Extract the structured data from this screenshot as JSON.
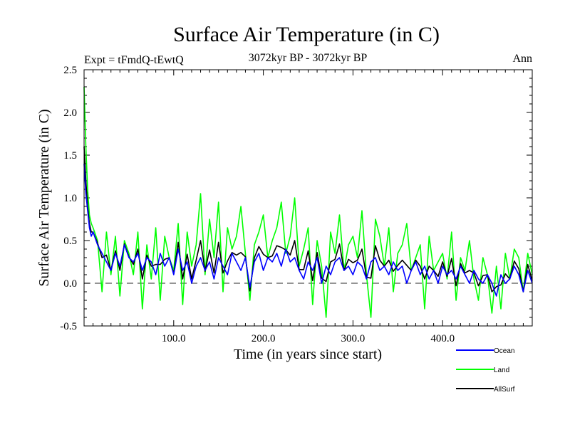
{
  "chart_data": {
    "type": "line",
    "title": "Surface Air Temperature (in C)",
    "subtitle": "3072kyr BP - 3072kyr BP",
    "experiment_label": "Expt = tFmdQ-tEwtQ",
    "season_label": "Ann",
    "xlabel": "Time (in years since start)",
    "ylabel": "Surface Air Temperature (in C)",
    "xlim": [
      0,
      500
    ],
    "ylim": [
      -0.5,
      2.5
    ],
    "xticks": [
      100,
      200,
      300,
      400
    ],
    "xtick_labels": [
      "100.0",
      "200.0",
      "300.0",
      "400.0"
    ],
    "yticks": [
      -0.5,
      0.0,
      0.5,
      1.0,
      1.5,
      2.0,
      2.5
    ],
    "ytick_labels": [
      "-0.5",
      "0.0",
      "0.5",
      "1.0",
      "1.5",
      "2.0",
      "2.5"
    ],
    "reference_line": 0.0,
    "grid": false,
    "legend_position": "bottom-right, below plot",
    "series": [
      {
        "name": "Ocean",
        "color": "#0000ff",
        "x": [
          0,
          2,
          4,
          6,
          8,
          10,
          15,
          20,
          25,
          30,
          35,
          40,
          45,
          50,
          55,
          60,
          65,
          70,
          75,
          80,
          85,
          90,
          95,
          100,
          105,
          110,
          115,
          120,
          125,
          130,
          135,
          140,
          145,
          150,
          155,
          160,
          165,
          170,
          175,
          180,
          185,
          190,
          195,
          200,
          205,
          210,
          215,
          220,
          225,
          230,
          235,
          240,
          245,
          250,
          255,
          260,
          265,
          270,
          275,
          280,
          285,
          290,
          295,
          300,
          305,
          310,
          315,
          320,
          325,
          330,
          335,
          340,
          345,
          350,
          355,
          360,
          365,
          370,
          375,
          380,
          385,
          390,
          395,
          400,
          405,
          410,
          415,
          420,
          425,
          430,
          435,
          440,
          445,
          450,
          455,
          460,
          465,
          470,
          475,
          480,
          485,
          490,
          495,
          500
        ],
        "values": [
          1.4,
          1.05,
          0.85,
          0.65,
          0.55,
          0.6,
          0.45,
          0.35,
          0.25,
          0.15,
          0.35,
          0.2,
          0.45,
          0.3,
          0.25,
          0.35,
          0.15,
          0.3,
          0.25,
          0.1,
          0.35,
          0.2,
          0.3,
          0.1,
          0.4,
          0.15,
          0.25,
          0.0,
          0.2,
          0.3,
          0.15,
          0.25,
          0.05,
          0.3,
          0.2,
          0.1,
          0.35,
          0.25,
          0.15,
          0.3,
          -0.05,
          0.25,
          0.35,
          0.15,
          0.3,
          0.25,
          0.35,
          0.2,
          0.4,
          0.25,
          0.3,
          0.15,
          0.05,
          0.25,
          0.15,
          0.3,
          0.0,
          0.2,
          0.1,
          0.25,
          0.3,
          0.15,
          0.2,
          0.1,
          0.25,
          0.2,
          0.05,
          0.25,
          0.3,
          0.15,
          0.2,
          0.1,
          0.25,
          0.15,
          0.2,
          0.0,
          0.15,
          0.25,
          0.1,
          0.2,
          0.05,
          0.15,
          0.0,
          0.2,
          0.1,
          0.15,
          0.05,
          0.2,
          0.1,
          0.0,
          0.15,
          0.05,
          0.0,
          0.1,
          0.0,
          -0.15,
          0.1,
          0.0,
          0.05,
          0.2,
          0.1,
          -0.1,
          0.15,
          0.0
        ]
      },
      {
        "name": "Land",
        "color": "#00ff00",
        "x": [
          0,
          2,
          4,
          6,
          8,
          10,
          15,
          20,
          25,
          30,
          35,
          40,
          45,
          50,
          55,
          60,
          65,
          70,
          75,
          80,
          85,
          90,
          95,
          100,
          105,
          110,
          115,
          120,
          125,
          130,
          135,
          140,
          145,
          150,
          155,
          160,
          165,
          170,
          175,
          180,
          185,
          190,
          195,
          200,
          205,
          210,
          215,
          220,
          225,
          230,
          235,
          240,
          245,
          250,
          255,
          260,
          265,
          270,
          275,
          280,
          285,
          290,
          295,
          300,
          305,
          310,
          315,
          320,
          325,
          330,
          335,
          340,
          345,
          350,
          355,
          360,
          365,
          370,
          375,
          380,
          385,
          390,
          395,
          400,
          405,
          410,
          415,
          420,
          425,
          430,
          435,
          440,
          445,
          450,
          455,
          460,
          465,
          470,
          475,
          480,
          485,
          490,
          495,
          500
        ],
        "values": [
          2.3,
          1.6,
          1.1,
          0.8,
          0.7,
          0.65,
          0.5,
          -0.1,
          0.6,
          0.1,
          0.55,
          -0.15,
          0.5,
          0.35,
          0.1,
          0.6,
          -0.3,
          0.45,
          0.05,
          0.65,
          -0.2,
          0.55,
          0.3,
          0.15,
          0.7,
          -0.25,
          0.6,
          0.2,
          0.45,
          1.05,
          0.1,
          0.75,
          0.3,
          0.95,
          -0.1,
          0.65,
          0.4,
          0.55,
          0.9,
          0.35,
          -0.2,
          0.45,
          0.6,
          0.8,
          0.3,
          0.5,
          0.65,
          0.95,
          0.35,
          0.55,
          1.0,
          0.2,
          0.4,
          0.65,
          -0.25,
          0.5,
          0.2,
          -0.4,
          0.6,
          0.35,
          0.8,
          0.15,
          0.45,
          0.55,
          0.3,
          0.85,
          0.1,
          -0.4,
          0.75,
          0.55,
          0.2,
          0.65,
          -0.1,
          0.35,
          0.45,
          0.7,
          0.15,
          0.3,
          0.45,
          -0.3,
          0.55,
          0.15,
          0.25,
          0.35,
          0.05,
          0.6,
          -0.2,
          0.3,
          0.15,
          0.5,
          0.05,
          -0.2,
          0.3,
          0.1,
          -0.35,
          0.2,
          -0.3,
          0.35,
          0.05,
          0.4,
          0.3,
          -0.1,
          0.35,
          0.1
        ]
      },
      {
        "name": "AllSurf",
        "color": "#000000",
        "x": [
          0,
          2,
          4,
          6,
          8,
          10,
          15,
          20,
          25,
          30,
          35,
          40,
          45,
          50,
          55,
          60,
          65,
          70,
          75,
          80,
          85,
          90,
          95,
          100,
          105,
          110,
          115,
          120,
          125,
          130,
          135,
          140,
          145,
          150,
          155,
          160,
          165,
          170,
          175,
          180,
          185,
          190,
          195,
          200,
          205,
          210,
          215,
          220,
          225,
          230,
          235,
          240,
          245,
          250,
          255,
          260,
          265,
          270,
          275,
          280,
          285,
          290,
          295,
          300,
          305,
          310,
          315,
          320,
          325,
          330,
          335,
          340,
          345,
          350,
          355,
          360,
          365,
          370,
          375,
          380,
          385,
          390,
          395,
          400,
          405,
          410,
          415,
          420,
          425,
          430,
          435,
          440,
          445,
          450,
          455,
          460,
          465,
          470,
          475,
          480,
          485,
          490,
          495,
          500
        ],
        "values": [
          1.6,
          1.2,
          0.9,
          0.7,
          0.6,
          0.6,
          0.47,
          0.3,
          0.33,
          0.15,
          0.38,
          0.15,
          0.46,
          0.31,
          0.22,
          0.4,
          0.05,
          0.33,
          0.2,
          0.22,
          0.22,
          0.28,
          0.3,
          0.11,
          0.48,
          0.05,
          0.34,
          0.05,
          0.27,
          0.5,
          0.14,
          0.39,
          0.12,
          0.48,
          0.12,
          0.26,
          0.36,
          0.33,
          0.36,
          0.31,
          -0.09,
          0.3,
          0.43,
          0.34,
          0.3,
          0.32,
          0.44,
          0.42,
          0.39,
          0.33,
          0.5,
          0.16,
          0.16,
          0.38,
          0.03,
          0.36,
          0.06,
          0.02,
          0.25,
          0.28,
          0.46,
          0.15,
          0.28,
          0.24,
          0.27,
          0.4,
          0.07,
          0.06,
          0.44,
          0.27,
          0.2,
          0.27,
          0.14,
          0.21,
          0.27,
          0.21,
          0.15,
          0.27,
          0.2,
          0.05,
          0.2,
          0.15,
          0.08,
          0.25,
          0.08,
          0.29,
          -0.03,
          0.23,
          0.12,
          0.15,
          0.12,
          -0.03,
          0.09,
          0.1,
          -0.1,
          -0.04,
          -0.02,
          0.11,
          0.05,
          0.26,
          0.17,
          -0.1,
          0.22,
          0.03
        ]
      }
    ]
  }
}
